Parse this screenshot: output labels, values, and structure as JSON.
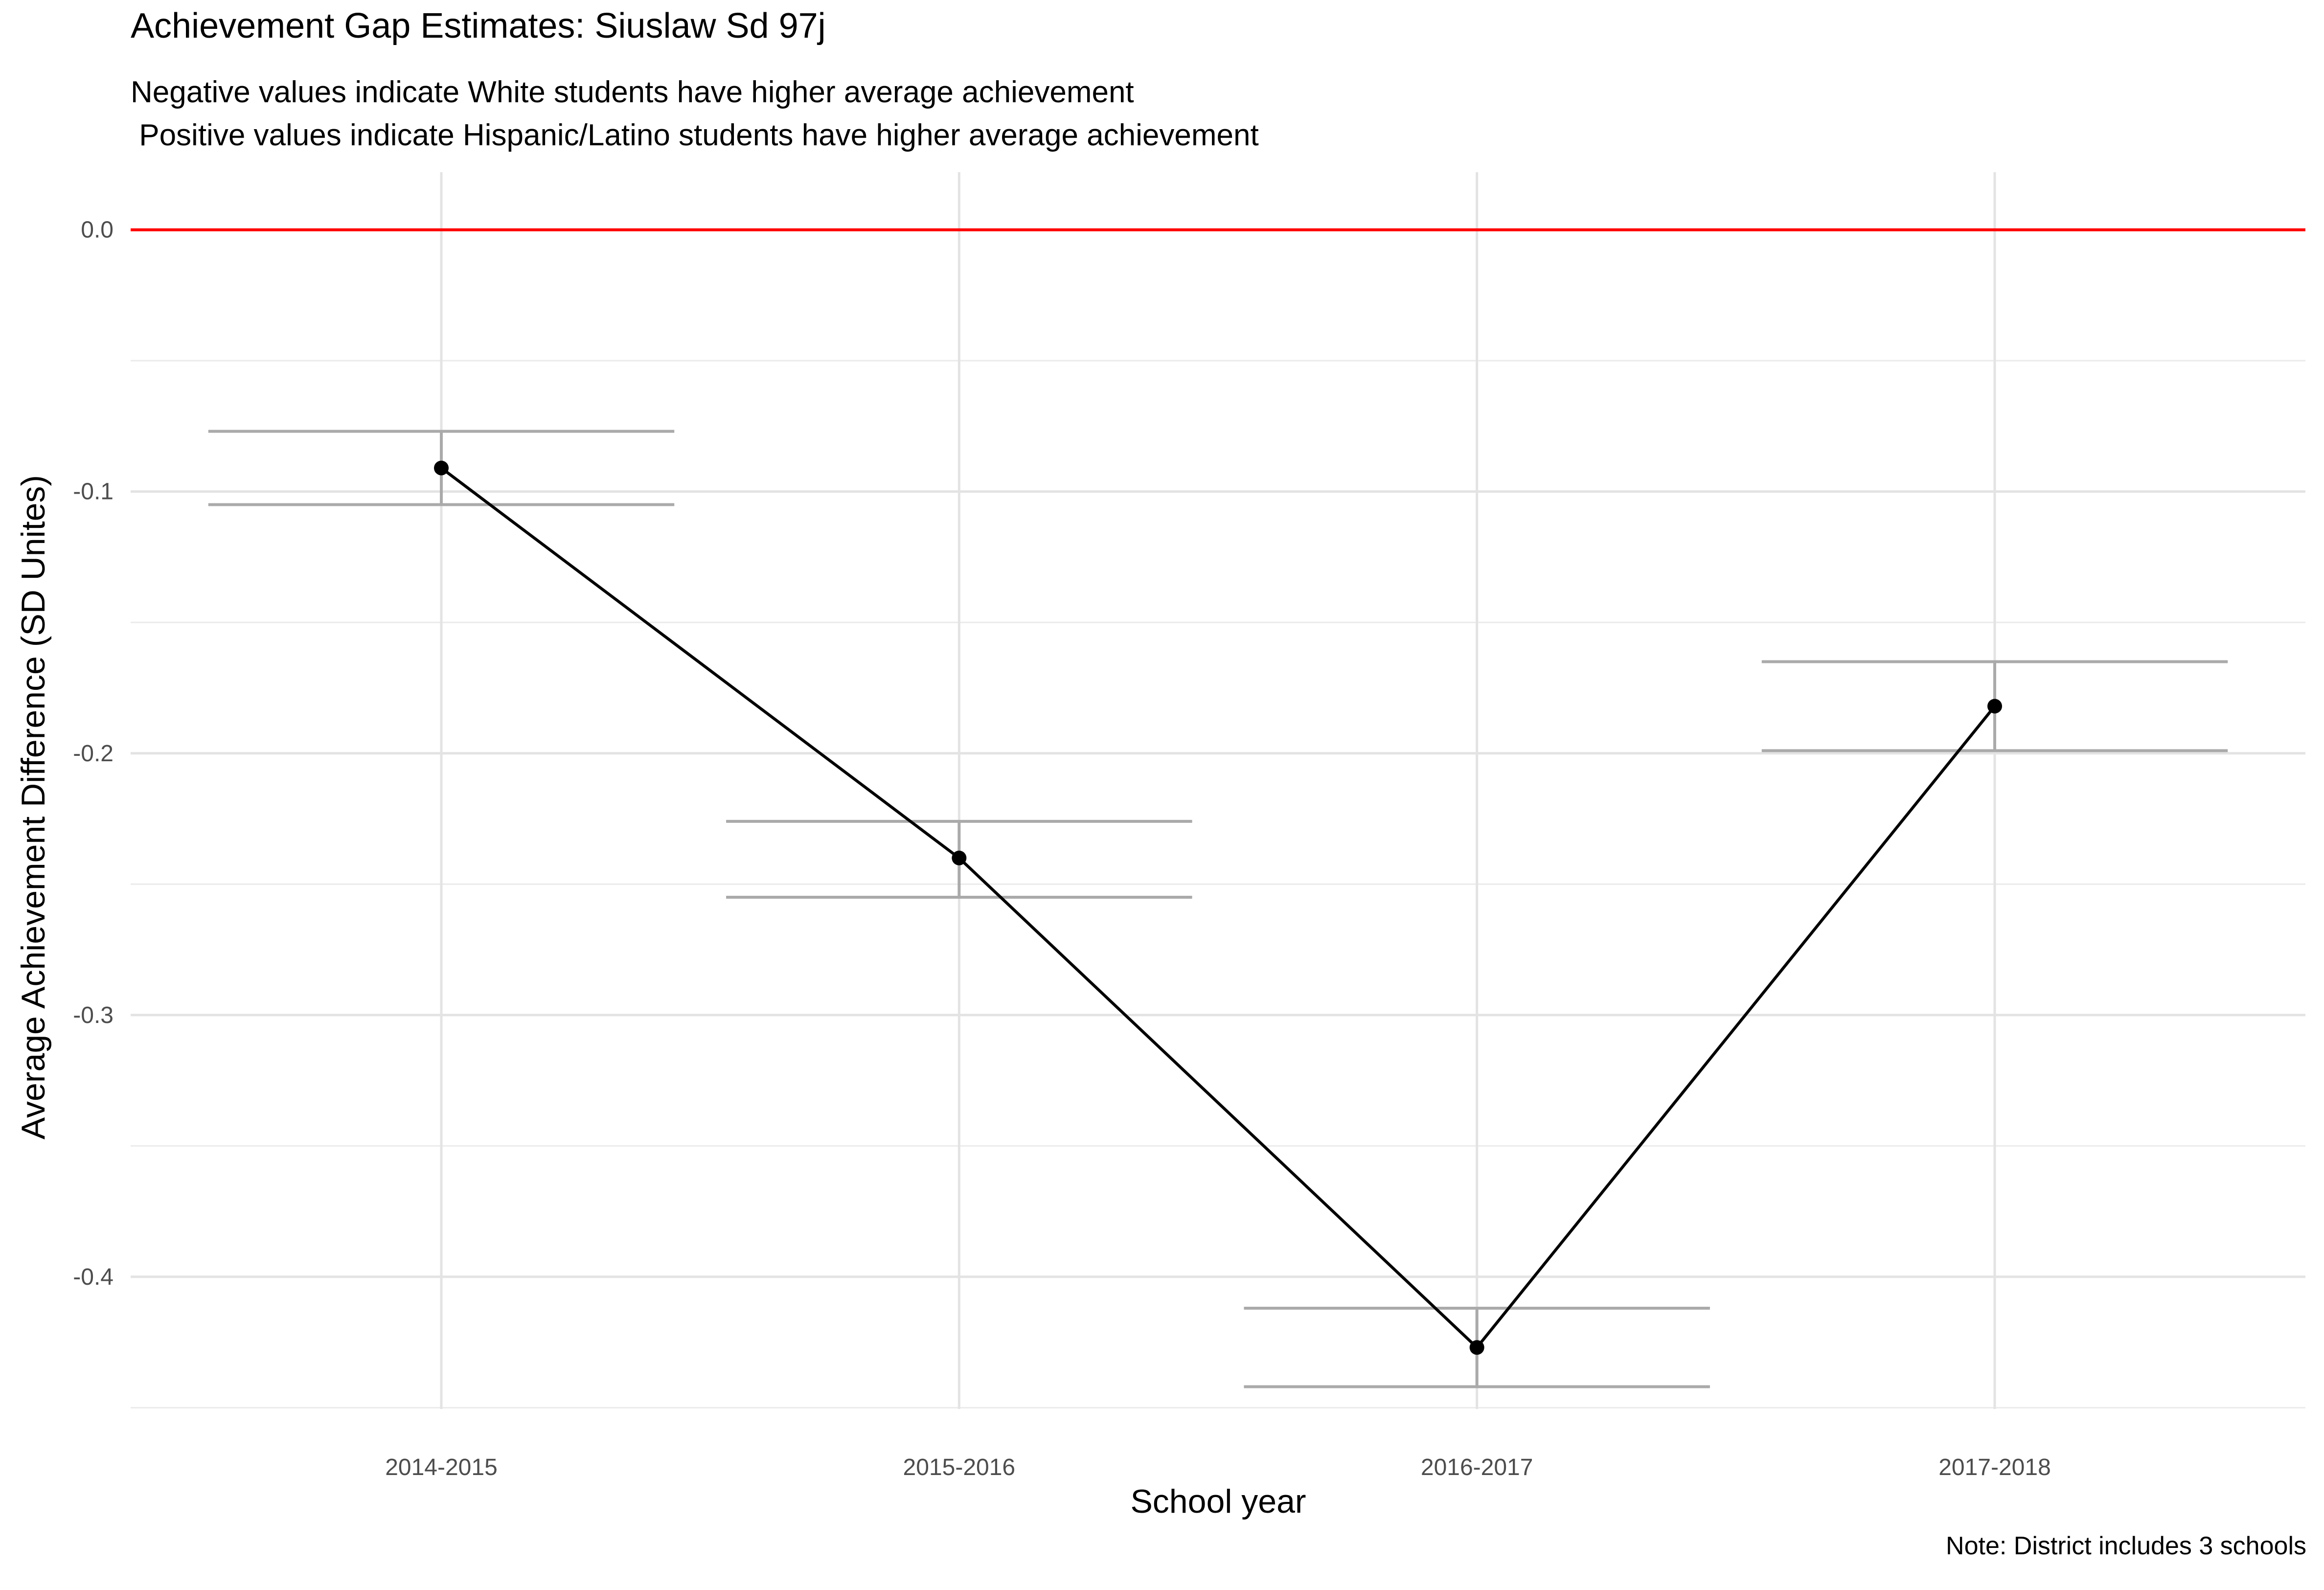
{
  "chart_data": {
    "type": "line",
    "title": "Achievement Gap Estimates: Siuslaw Sd 97j",
    "subtitle_lines": [
      "Negative values indicate White students have higher average achievement",
      " Positive values indicate Hispanic/Latino students have higher average achievement"
    ],
    "xlabel": "School year",
    "ylabel": "Average Achievement Difference (SD Unites)",
    "caption": "Note: District includes 3 schools",
    "categories": [
      "2014-2015",
      "2015-2016",
      "2016-2017",
      "2017-2018"
    ],
    "series": [
      {
        "values": [
          -0.091,
          -0.24,
          -0.427,
          -0.182
        ],
        "lower": [
          -0.105,
          -0.255,
          -0.442,
          -0.199
        ],
        "upper": [
          -0.077,
          -0.226,
          -0.412,
          -0.165
        ],
        "color": "#000000",
        "errorbar_color": "#aaaaaa"
      }
    ],
    "reference_line": {
      "y": 0.0,
      "color": "#ff0000"
    },
    "yticks": [
      0.0,
      -0.1,
      -0.2,
      -0.3,
      -0.4
    ],
    "ytick_labels": [
      "0.0",
      "-0.1",
      "-0.2",
      "-0.3",
      "-0.4"
    ],
    "ylim": [
      -0.4505,
      0.022
    ],
    "grid": true,
    "legend": "none"
  }
}
